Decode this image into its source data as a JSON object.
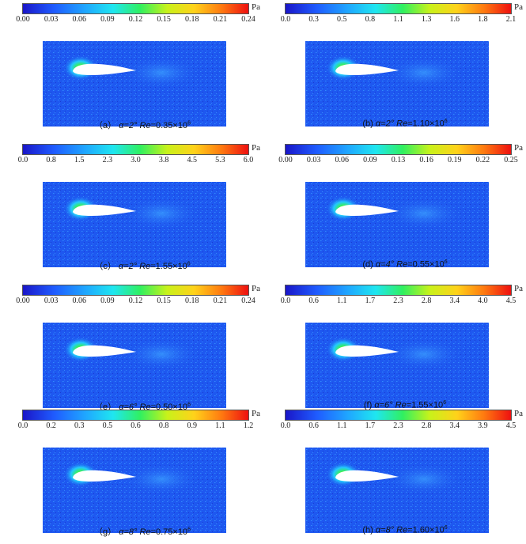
{
  "colors": {
    "field_bg": "#1e58f0",
    "field_deep": "#1a34c8",
    "airfoil": "#ffffff"
  },
  "panels": [
    {
      "id": "a",
      "unit": "Pa",
      "ticks": [
        "0.00",
        "0.03",
        "0.06",
        "0.09",
        "0.12",
        "0.15",
        "0.18",
        "0.21",
        "0.24"
      ],
      "label": "（a）",
      "alpha": "α=2°",
      "re_label": "Re",
      "re_value": "=0.35×10",
      "re_exp": "6"
    },
    {
      "id": "b",
      "unit": "Pa",
      "ticks": [
        "0.0",
        "0.3",
        "0.5",
        "0.8",
        "1.1",
        "1.3",
        "1.6",
        "1.8",
        "2.1"
      ],
      "label": "(b)",
      "alpha": "α=2°",
      "re_label": "Re",
      "re_value": "=1.10×10",
      "re_exp": "6"
    },
    {
      "id": "c",
      "unit": "Pa",
      "ticks": [
        "0.0",
        "0.8",
        "1.5",
        "2.3",
        "3.0",
        "3.8",
        "4.5",
        "5.3",
        "6.0"
      ],
      "label": "（c）",
      "alpha": "α=2°",
      "re_label": "Re",
      "re_value": "=1.55×10",
      "re_exp": "6"
    },
    {
      "id": "d",
      "unit": "Pa",
      "ticks": [
        "0.00",
        "0.03",
        "0.06",
        "0.09",
        "0.13",
        "0.16",
        "0.19",
        "0.22",
        "0.25"
      ],
      "label": "(d)",
      "alpha": "α=4°",
      "re_label": "Re",
      "re_value": "=0.55×10",
      "re_exp": "6"
    },
    {
      "id": "e",
      "unit": "Pa",
      "ticks": [
        "0.00",
        "0.03",
        "0.06",
        "0.09",
        "0.12",
        "0.15",
        "0.18",
        "0.21",
        "0.24"
      ],
      "label": "（e）",
      "alpha": "α=6°",
      "re_label": "Re",
      "re_value": "=0.50×10",
      "re_exp": "6"
    },
    {
      "id": "f",
      "unit": "Pa",
      "ticks": [
        "0.0",
        "0.6",
        "1.1",
        "1.7",
        "2.3",
        "2.8",
        "3.4",
        "4.0",
        "4.5"
      ],
      "label": "(f)",
      "alpha": "α=6°",
      "re_label": "Re",
      "re_value": "=1.55×10",
      "re_exp": "6"
    },
    {
      "id": "g",
      "unit": "Pa",
      "ticks": [
        "0.0",
        "0.2",
        "0.3",
        "0.5",
        "0.6",
        "0.8",
        "0.9",
        "1.1",
        "1.2"
      ],
      "label": "（g）",
      "alpha": "α=8°",
      "re_label": "Re",
      "re_value": "=0.75×10",
      "re_exp": "6"
    },
    {
      "id": "h",
      "unit": "Pa",
      "ticks": [
        "0.0",
        "0.6",
        "1.1",
        "1.7",
        "2.3",
        "2.8",
        "3.4",
        "3.9",
        "4.5"
      ],
      "label": "(h)",
      "alpha": "α=8°",
      "re_label": "Re",
      "re_value": "=1.60×10",
      "re_exp": "6"
    }
  ]
}
